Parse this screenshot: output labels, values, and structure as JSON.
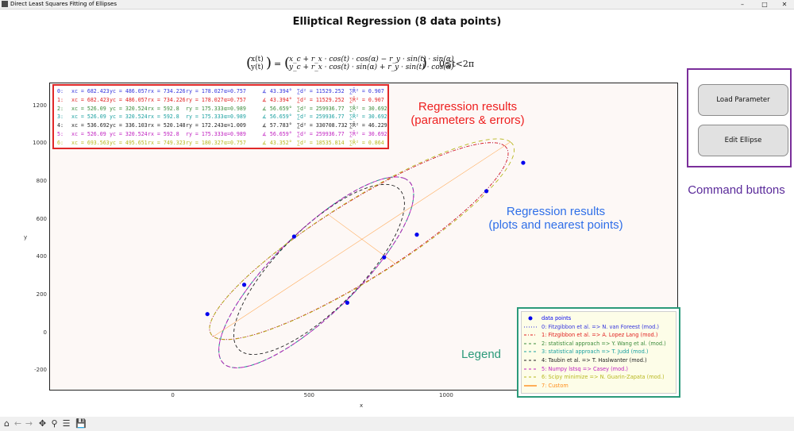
{
  "window": {
    "title": "Direct Least Squares Fitting of Ellipses",
    "controls": [
      "minimize-icon",
      "maximize-icon",
      "close-icon"
    ]
  },
  "main_title": "Elliptical Regression (8 data points)",
  "formula": {
    "lhs_top": "x(t)",
    "lhs_bottom": "y(t)",
    "rhs_top": "x_c + r_x · cos(t) · cos(α) − r_y · sin(t) · sin(α)",
    "rhs_bottom": "y_c + r_x · cos(t) · sin(α) + r_y · sin(t) · cos(α)",
    "range": "0≦t<2π"
  },
  "results": [
    {
      "idx": "0:",
      "xc": "682.423",
      "yc": "486.057",
      "rx": "734.226",
      "ry": "178.027",
      "alpha": "0.757",
      "angle": "43.394°",
      "d2": "11529.252",
      "r2": "0.907",
      "color": "#3333dd"
    },
    {
      "idx": "1:",
      "xc": "682.423",
      "yc": "486.057",
      "rx": "734.226",
      "ry": "178.027",
      "alpha": "0.757",
      "angle": "43.394°",
      "d2": "11529.252",
      "r2": "0.907",
      "color": "#e02020"
    },
    {
      "idx": "2:",
      "xc": "526.09",
      "yc": "320.524",
      "rx": "592.8",
      "ry": "175.333",
      "alpha": "0.989",
      "angle": "56.659°",
      "d2": "259936.77",
      "r2": "30.692",
      "color": "#3a8a3a"
    },
    {
      "idx": "3:",
      "xc": "526.09",
      "yc": "320.524",
      "rx": "592.8",
      "ry": "175.333",
      "alpha": "0.989",
      "angle": "56.659°",
      "d2": "259936.77",
      "r2": "30.692",
      "color": "#1aa0a0"
    },
    {
      "idx": "4:",
      "xc": "536.692",
      "yc": "336.103",
      "rx": "520.148",
      "ry": "172.243",
      "alpha": "1.009",
      "angle": "57.783°",
      "d2": "330708.732",
      "r2": "46.229",
      "color": "#222222"
    },
    {
      "idx": "5:",
      "xc": "526.09",
      "yc": "320.524",
      "rx": "592.8",
      "ry": "175.333",
      "alpha": "0.989",
      "angle": "56.659°",
      "d2": "259936.77",
      "r2": "30.692",
      "color": "#c020c0"
    },
    {
      "idx": "6:",
      "xc": "693.563",
      "yc": "495.651",
      "rx": "749.323",
      "ry": "180.327",
      "alpha": "0.757",
      "angle": "43.352°",
      "d2": "18535.814",
      "r2": "0.864",
      "color": "#b8b820"
    }
  ],
  "annotations": {
    "regression_params": [
      "Regression results",
      "(parameters & errors)"
    ],
    "regression_plots": [
      "Regression results",
      "(plots and nearest points)"
    ],
    "command_buttons": "Command buttons",
    "legend": "Legend"
  },
  "buttons": {
    "load_parameter": "Load Parameter",
    "edit_ellipse": "Edit Ellipse"
  },
  "legend_items": [
    {
      "id": "",
      "label": "data points",
      "color": "#0000ee",
      "style": "dot"
    },
    {
      "id": "0:",
      "label": "Fitzgibbon et al. => N. van Foreest (mod.)",
      "color": "#3333dd",
      "style": "dotted"
    },
    {
      "id": "1:",
      "label": "Fitzgibbon et al. =>  A. Lopez Lang (mod.)",
      "color": "#e02020",
      "style": "dashdot"
    },
    {
      "id": "2:",
      "label": "statistical approach => Y. Wang et al. (mod.)",
      "color": "#3a8a3a",
      "style": "dashed"
    },
    {
      "id": "3:",
      "label": "statistical approach => T. Judd (mod.)",
      "color": "#1aa0a0",
      "style": "dashed"
    },
    {
      "id": "4:",
      "label": "Taubin et al. => T. Haslwanter (mod.)",
      "color": "#222222",
      "style": "dashed"
    },
    {
      "id": "5:",
      "label": "Numpy lstsq => Casey (mod.)",
      "color": "#c020c0",
      "style": "dashed"
    },
    {
      "id": "6:",
      "label": "Scipy minimize => N. Guarin-Zapata (mod.)",
      "color": "#b8b820",
      "style": "dashed"
    },
    {
      "id": "7:",
      "label": "Custom",
      "color": "#ff8c1a",
      "style": "solid"
    }
  ],
  "toolbar": [
    "home-icon",
    "back-icon",
    "forward-icon",
    "pan-icon",
    "zoom-icon",
    "configure-icon",
    "save-icon"
  ],
  "chart_data": {
    "type": "scatter",
    "title": "",
    "xlabel": "x",
    "ylabel": "y",
    "xlim": [
      -450,
      1850
    ],
    "ylim": [
      -300,
      1320
    ],
    "x_ticks": [
      0,
      500,
      1000,
      1500
    ],
    "y_ticks": [
      -200,
      0,
      200,
      400,
      600,
      800,
      1000,
      1200
    ],
    "grid": false,
    "legend_position": "bottom-right",
    "data_points": [
      {
        "x": 127,
        "y": 100
      },
      {
        "x": 262,
        "y": 255
      },
      {
        "x": 445,
        "y": 510
      },
      {
        "x": 640,
        "y": 160
      },
      {
        "x": 775,
        "y": 400
      },
      {
        "x": 895,
        "y": 520
      },
      {
        "x": 1150,
        "y": 750
      },
      {
        "x": 1285,
        "y": 900
      }
    ],
    "ellipses": [
      {
        "name": "0",
        "xc": 682.423,
        "yc": 486.057,
        "rx": 734.226,
        "ry": 178.027,
        "alpha": 0.757,
        "color": "#3333dd",
        "dash": "1,2"
      },
      {
        "name": "1",
        "xc": 682.423,
        "yc": 486.057,
        "rx": 734.226,
        "ry": 178.027,
        "alpha": 0.757,
        "color": "#e02020",
        "dash": "4,2,1,2"
      },
      {
        "name": "2",
        "xc": 526.09,
        "yc": 320.524,
        "rx": 592.8,
        "ry": 175.333,
        "alpha": 0.989,
        "color": "#3a8a3a",
        "dash": "5,3"
      },
      {
        "name": "3",
        "xc": 526.09,
        "yc": 320.524,
        "rx": 592.8,
        "ry": 175.333,
        "alpha": 0.989,
        "color": "#1aa0a0",
        "dash": "5,3"
      },
      {
        "name": "4",
        "xc": 536.692,
        "yc": 336.103,
        "rx": 520.148,
        "ry": 172.243,
        "alpha": 1.009,
        "color": "#222222",
        "dash": "4,3"
      },
      {
        "name": "5",
        "xc": 526.09,
        "yc": 320.524,
        "rx": 592.8,
        "ry": 175.333,
        "alpha": 0.989,
        "color": "#c020c0",
        "dash": "6,3"
      },
      {
        "name": "6",
        "xc": 693.563,
        "yc": 495.651,
        "rx": 749.323,
        "ry": 180.327,
        "alpha": 0.757,
        "color": "#b8b820",
        "dash": "5,4"
      }
    ]
  }
}
